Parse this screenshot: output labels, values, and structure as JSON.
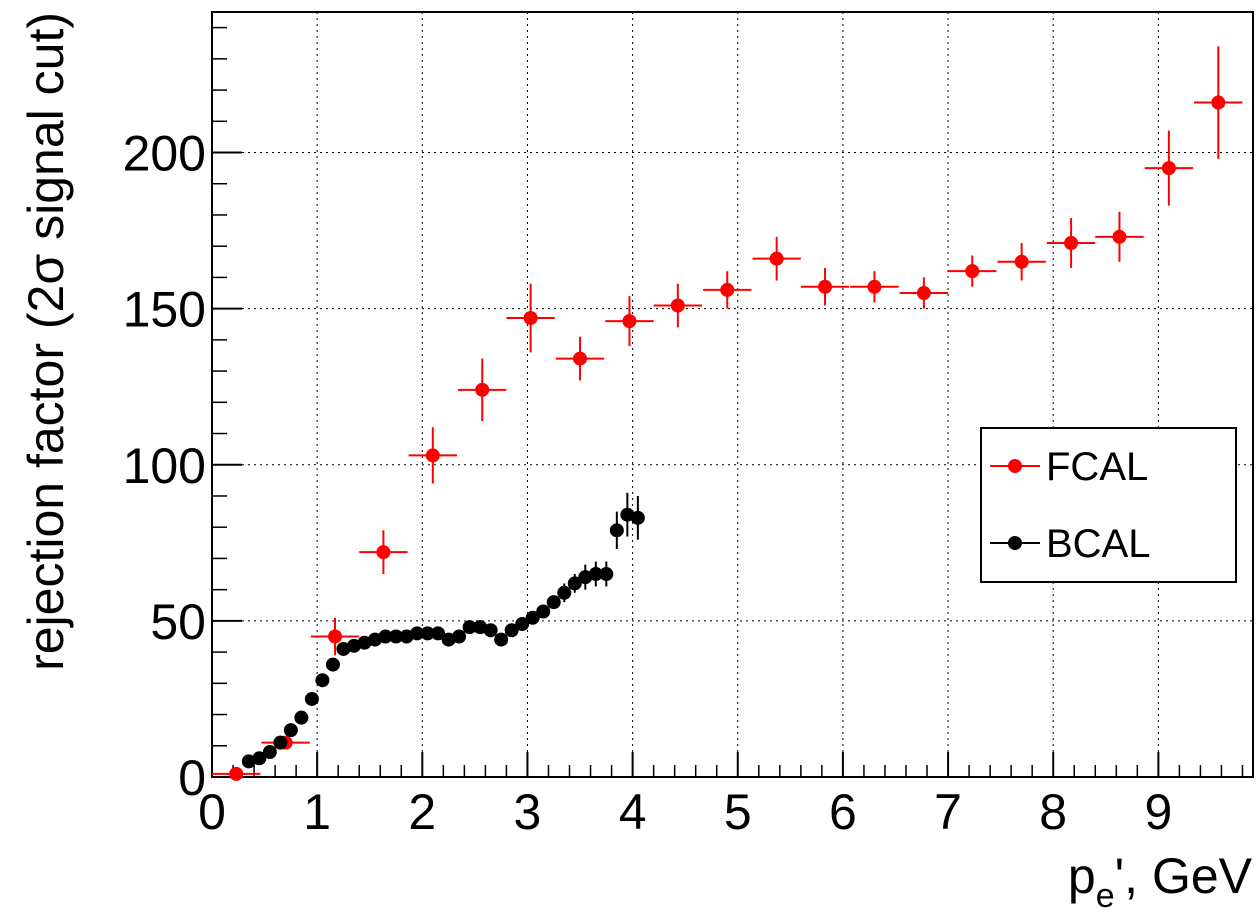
{
  "chart_data": {
    "type": "scatter",
    "xlabel_main": "p",
    "xlabel_sub": "e",
    "xlabel_rest": "', GeV",
    "ylabel": "rejection factor (2σ signal cut)",
    "xlim": [
      0,
      9.9
    ],
    "ylim": [
      0,
      245
    ],
    "x_ticks": [
      0,
      1,
      2,
      3,
      4,
      5,
      6,
      7,
      8,
      9
    ],
    "y_ticks": [
      0,
      50,
      100,
      150,
      200
    ],
    "grid": true,
    "legend_position": "right",
    "series": [
      {
        "name": "FCAL",
        "color": "#ff0000",
        "points": [
          {
            "x": 0.23,
            "y": 1,
            "xerr": 0.23,
            "yerr": 1
          },
          {
            "x": 0.7,
            "y": 11,
            "xerr": 0.23,
            "yerr": 2
          },
          {
            "x": 1.17,
            "y": 45,
            "xerr": 0.23,
            "yerr": 6
          },
          {
            "x": 1.63,
            "y": 72,
            "xerr": 0.23,
            "yerr": 7
          },
          {
            "x": 2.1,
            "y": 103,
            "xerr": 0.23,
            "yerr": 9
          },
          {
            "x": 2.57,
            "y": 124,
            "xerr": 0.23,
            "yerr": 10
          },
          {
            "x": 3.03,
            "y": 147,
            "xerr": 0.23,
            "yerr": 11
          },
          {
            "x": 3.5,
            "y": 134,
            "xerr": 0.23,
            "yerr": 7
          },
          {
            "x": 3.97,
            "y": 146,
            "xerr": 0.23,
            "yerr": 8
          },
          {
            "x": 4.43,
            "y": 151,
            "xerr": 0.23,
            "yerr": 7
          },
          {
            "x": 4.9,
            "y": 156,
            "xerr": 0.23,
            "yerr": 6
          },
          {
            "x": 5.37,
            "y": 166,
            "xerr": 0.23,
            "yerr": 7
          },
          {
            "x": 5.83,
            "y": 157,
            "xerr": 0.23,
            "yerr": 6
          },
          {
            "x": 6.3,
            "y": 157,
            "xerr": 0.23,
            "yerr": 5
          },
          {
            "x": 6.77,
            "y": 155,
            "xerr": 0.23,
            "yerr": 5
          },
          {
            "x": 7.23,
            "y": 162,
            "xerr": 0.23,
            "yerr": 5
          },
          {
            "x": 7.7,
            "y": 165,
            "xerr": 0.23,
            "yerr": 6
          },
          {
            "x": 8.17,
            "y": 171,
            "xerr": 0.23,
            "yerr": 8
          },
          {
            "x": 8.63,
            "y": 173,
            "xerr": 0.23,
            "yerr": 8
          },
          {
            "x": 9.1,
            "y": 195,
            "xerr": 0.23,
            "yerr": 12
          },
          {
            "x": 9.57,
            "y": 216,
            "xerr": 0.23,
            "yerr": 18
          }
        ]
      },
      {
        "name": "BCAL",
        "color": "#000000",
        "points": [
          {
            "x": 0.35,
            "y": 5,
            "yerr": 1
          },
          {
            "x": 0.45,
            "y": 6,
            "yerr": 1
          },
          {
            "x": 0.55,
            "y": 8,
            "yerr": 1
          },
          {
            "x": 0.65,
            "y": 11,
            "yerr": 1
          },
          {
            "x": 0.75,
            "y": 15,
            "yerr": 1
          },
          {
            "x": 0.85,
            "y": 19,
            "yerr": 1
          },
          {
            "x": 0.95,
            "y": 25,
            "yerr": 1
          },
          {
            "x": 1.05,
            "y": 31,
            "yerr": 1
          },
          {
            "x": 1.15,
            "y": 36,
            "yerr": 1
          },
          {
            "x": 1.25,
            "y": 41,
            "yerr": 1
          },
          {
            "x": 1.35,
            "y": 42,
            "yerr": 1
          },
          {
            "x": 1.45,
            "y": 43,
            "yerr": 1
          },
          {
            "x": 1.55,
            "y": 44,
            "yerr": 1
          },
          {
            "x": 1.65,
            "y": 45,
            "yerr": 1
          },
          {
            "x": 1.75,
            "y": 45,
            "yerr": 1
          },
          {
            "x": 1.85,
            "y": 45,
            "yerr": 1
          },
          {
            "x": 1.95,
            "y": 46,
            "yerr": 1
          },
          {
            "x": 2.05,
            "y": 46,
            "yerr": 1
          },
          {
            "x": 2.15,
            "y": 46,
            "yerr": 1
          },
          {
            "x": 2.25,
            "y": 44,
            "yerr": 1
          },
          {
            "x": 2.35,
            "y": 45,
            "yerr": 1
          },
          {
            "x": 2.45,
            "y": 48,
            "yerr": 1
          },
          {
            "x": 2.55,
            "y": 48,
            "yerr": 1
          },
          {
            "x": 2.65,
            "y": 47,
            "yerr": 1
          },
          {
            "x": 2.75,
            "y": 44,
            "yerr": 1
          },
          {
            "x": 2.85,
            "y": 47,
            "yerr": 1
          },
          {
            "x": 2.95,
            "y": 49,
            "yerr": 1
          },
          {
            "x": 3.05,
            "y": 51,
            "yerr": 2
          },
          {
            "x": 3.15,
            "y": 53,
            "yerr": 2
          },
          {
            "x": 3.25,
            "y": 56,
            "yerr": 2
          },
          {
            "x": 3.35,
            "y": 59,
            "yerr": 3
          },
          {
            "x": 3.45,
            "y": 62,
            "yerr": 3
          },
          {
            "x": 3.55,
            "y": 64,
            "yerr": 4
          },
          {
            "x": 3.65,
            "y": 65,
            "yerr": 4
          },
          {
            "x": 3.75,
            "y": 65,
            "yerr": 4
          },
          {
            "x": 3.85,
            "y": 79,
            "yerr": 6
          },
          {
            "x": 3.95,
            "y": 84,
            "yerr": 7
          },
          {
            "x": 4.05,
            "y": 83,
            "yerr": 7
          }
        ]
      }
    ]
  }
}
